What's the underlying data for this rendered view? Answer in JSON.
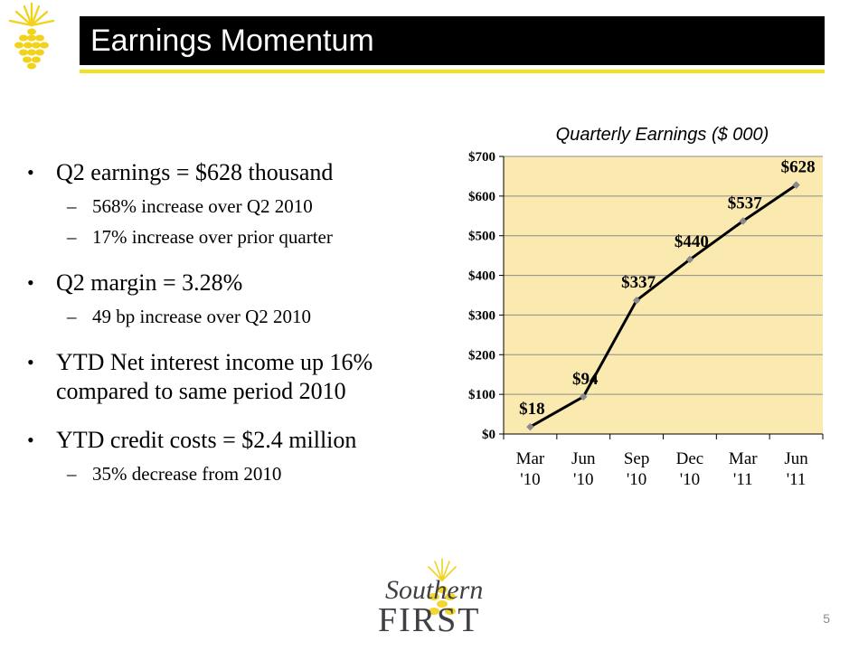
{
  "slide": {
    "title": "Earnings Momentum",
    "page_number": "5"
  },
  "bullets": [
    {
      "text": "Q2 earnings = $628 thousand",
      "sub": [
        "568% increase over Q2 2010",
        "17% increase over prior quarter"
      ]
    },
    {
      "text": "Q2 margin = 3.28%",
      "sub": [
        "49 bp increase over Q2 2010"
      ]
    },
    {
      "text": "YTD Net interest income up 16% compared to same period 2010",
      "sub": []
    },
    {
      "text": "YTD credit costs = $2.4 million",
      "sub": [
        "35% decrease from 2010"
      ]
    }
  ],
  "logo": {
    "line1": "Southern",
    "line2": "FIRST",
    "icon": "pineapple-icon"
  },
  "colors": {
    "title_bar": "#000000",
    "accent_yellow": "#f2e21a",
    "plot_background": "#faeab0",
    "line": "#000000",
    "marker": "#8a8a8a"
  },
  "chart_data": {
    "type": "line",
    "title": "Quarterly Earnings ($ 000)",
    "categories": [
      "Mar '10",
      "Jun '10",
      "Sep '10",
      "Dec '10",
      "Mar '11",
      "Jun '11"
    ],
    "category_lines": [
      [
        "Mar",
        "'10"
      ],
      [
        "Jun",
        "'10"
      ],
      [
        "Sep",
        "'10"
      ],
      [
        "Dec",
        "'10"
      ],
      [
        "Mar",
        "'11"
      ],
      [
        "Jun",
        "'11"
      ]
    ],
    "values": [
      18,
      94,
      337,
      440,
      537,
      628
    ],
    "data_labels": [
      "$18",
      "$94",
      "$337",
      "$440",
      "$537",
      "$628"
    ],
    "yticks": [
      0,
      100,
      200,
      300,
      400,
      500,
      600,
      700
    ],
    "ytick_labels": [
      "$0",
      "$100",
      "$200",
      "$300",
      "$400",
      "$500",
      "$600",
      "$700"
    ],
    "ylim": [
      0,
      700
    ],
    "grid": true,
    "legend": false
  }
}
